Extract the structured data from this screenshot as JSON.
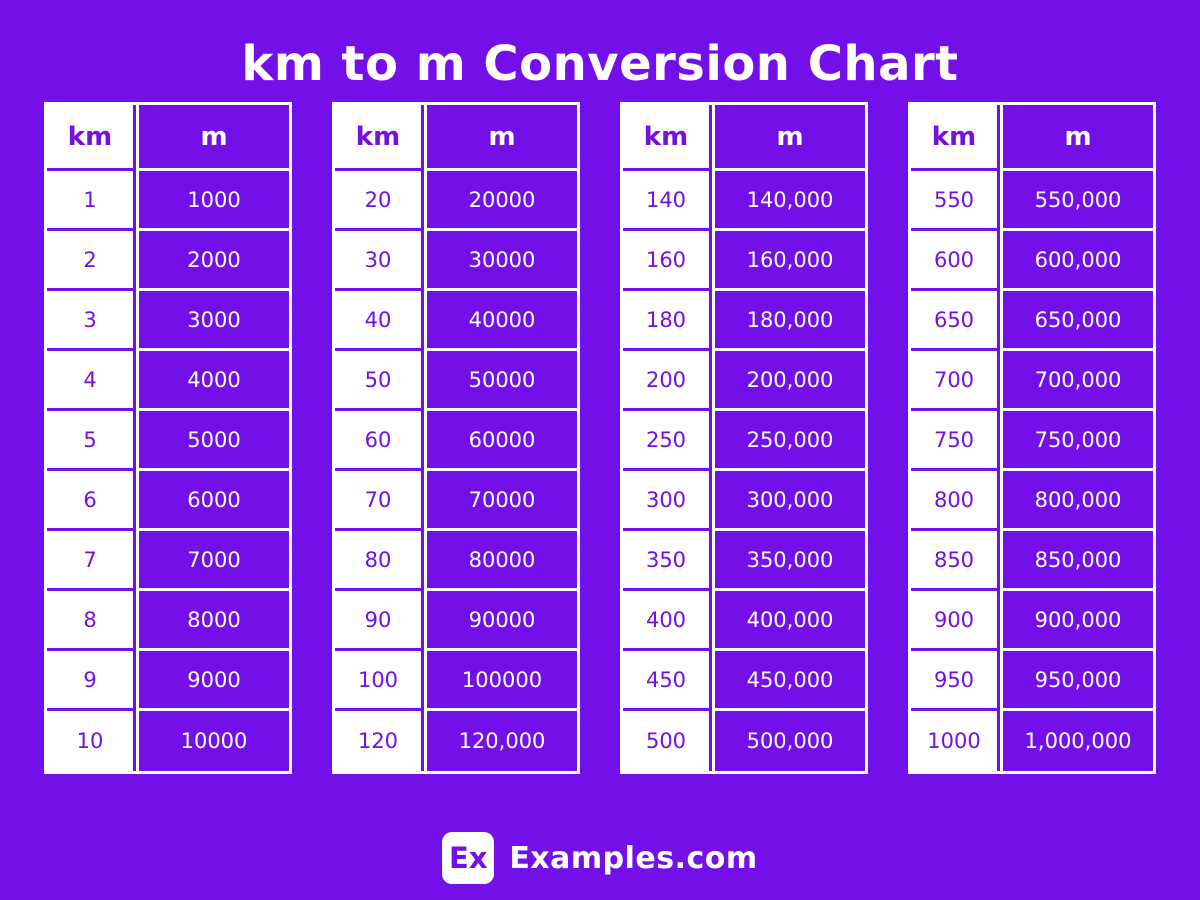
{
  "page": {
    "title": "km to m Conversion Chart",
    "background_color": "#7310E9",
    "cell_white": "#FFFFFF"
  },
  "chart_data": {
    "type": "table",
    "title": "km to m Conversion Chart",
    "columns": [
      "km",
      "m"
    ],
    "tables": [
      {
        "headers": [
          "km",
          "m"
        ],
        "rows": [
          [
            "1",
            "1000"
          ],
          [
            "2",
            "2000"
          ],
          [
            "3",
            "3000"
          ],
          [
            "4",
            "4000"
          ],
          [
            "5",
            "5000"
          ],
          [
            "6",
            "6000"
          ],
          [
            "7",
            "7000"
          ],
          [
            "8",
            "8000"
          ],
          [
            "9",
            "9000"
          ],
          [
            "10",
            "10000"
          ]
        ]
      },
      {
        "headers": [
          "km",
          "m"
        ],
        "rows": [
          [
            "20",
            "20000"
          ],
          [
            "30",
            "30000"
          ],
          [
            "40",
            "40000"
          ],
          [
            "50",
            "50000"
          ],
          [
            "60",
            "60000"
          ],
          [
            "70",
            "70000"
          ],
          [
            "80",
            "80000"
          ],
          [
            "90",
            "90000"
          ],
          [
            "100",
            "100000"
          ],
          [
            "120",
            "120,000"
          ]
        ]
      },
      {
        "headers": [
          "km",
          "m"
        ],
        "rows": [
          [
            "140",
            "140,000"
          ],
          [
            "160",
            "160,000"
          ],
          [
            "180",
            "180,000"
          ],
          [
            "200",
            "200,000"
          ],
          [
            "250",
            "250,000"
          ],
          [
            "300",
            "300,000"
          ],
          [
            "350",
            "350,000"
          ],
          [
            "400",
            "400,000"
          ],
          [
            "450",
            "450,000"
          ],
          [
            "500",
            "500,000"
          ]
        ]
      },
      {
        "headers": [
          "km",
          "m"
        ],
        "rows": [
          [
            "550",
            "550,000"
          ],
          [
            "600",
            "600,000"
          ],
          [
            "650",
            "650,000"
          ],
          [
            "700",
            "700,000"
          ],
          [
            "750",
            "750,000"
          ],
          [
            "800",
            "800,000"
          ],
          [
            "850",
            "850,000"
          ],
          [
            "900",
            "900,000"
          ],
          [
            "950",
            "950,000"
          ],
          [
            "1000",
            "1,000,000"
          ]
        ]
      }
    ]
  },
  "footer": {
    "logo_badge": "Ex",
    "brand": "Examples.com"
  }
}
